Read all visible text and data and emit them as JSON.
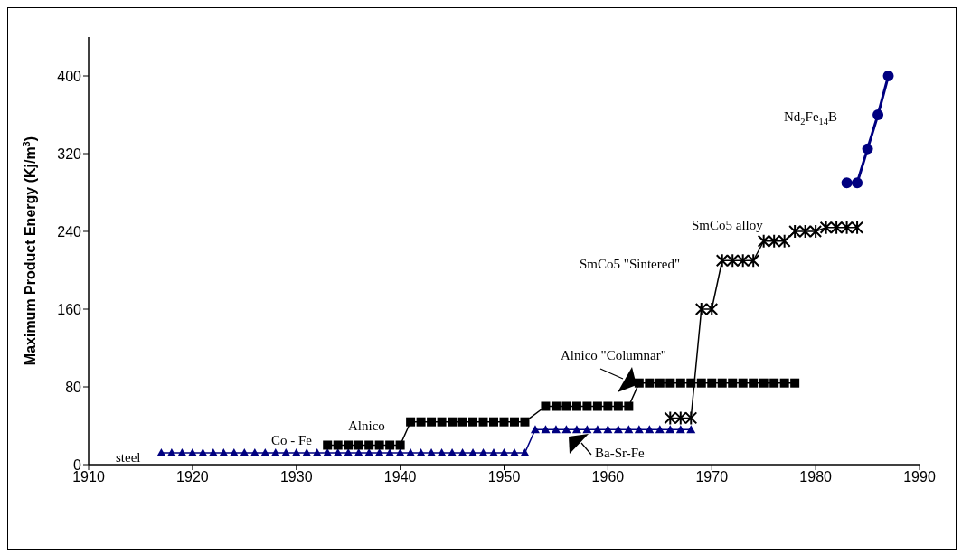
{
  "chart_data": {
    "type": "line",
    "ylabel": "Maximum Product Energy  (Kj/m$^{3}$)",
    "xlim": [
      1910,
      1990
    ],
    "xticks": [
      1910,
      1920,
      1930,
      1940,
      1950,
      1960,
      1970,
      1980,
      1990
    ],
    "ylim": [
      0,
      440
    ],
    "yticks": [
      0,
      80,
      160,
      240,
      320,
      400
    ],
    "line_style": "solid",
    "series": [
      {
        "color": "#000080",
        "marker": "triangle",
        "x": [
          1917,
          1918,
          1919,
          1920,
          1921,
          1922,
          1923,
          1924,
          1925,
          1926,
          1927,
          1928,
          1929,
          1930,
          1931,
          1932,
          1933,
          1934,
          1935,
          1936,
          1937,
          1938,
          1939,
          1940,
          1941,
          1942,
          1943,
          1944,
          1945,
          1946,
          1947,
          1948,
          1949,
          1950,
          1951,
          1952,
          1953,
          1954,
          1955,
          1956,
          1957,
          1958,
          1959,
          1960,
          1961,
          1962,
          1963,
          1964,
          1965,
          1966,
          1967,
          1968
        ],
        "values": [
          12,
          12,
          12,
          12,
          12,
          12,
          12,
          12,
          12,
          12,
          12,
          12,
          12,
          12,
          12,
          12,
          12,
          12,
          12,
          12,
          12,
          12,
          12,
          12,
          12,
          12,
          12,
          12,
          12,
          12,
          12,
          12,
          12,
          12,
          12,
          12,
          36,
          36,
          36,
          36,
          36,
          36,
          36,
          36,
          36,
          36,
          36,
          36,
          36,
          36,
          36,
          36
        ]
      },
      {
        "color": "#000000",
        "marker": "square",
        "x": [
          1933,
          1934,
          1935,
          1936,
          1937,
          1938,
          1939,
          1940,
          1941,
          1942,
          1943,
          1944,
          1945,
          1946,
          1947,
          1948,
          1949,
          1950,
          1951,
          1952,
          1954,
          1955,
          1956,
          1957,
          1958,
          1959,
          1960,
          1961,
          1962,
          1963,
          1964,
          1965,
          1966,
          1967,
          1968,
          1969,
          1970,
          1971,
          1972,
          1973,
          1974,
          1975,
          1976,
          1977,
          1978
        ],
        "values": [
          20,
          20,
          20,
          20,
          20,
          20,
          20,
          20,
          44,
          44,
          44,
          44,
          44,
          44,
          44,
          44,
          44,
          44,
          44,
          44,
          60,
          60,
          60,
          60,
          60,
          60,
          60,
          60,
          60,
          84,
          84,
          84,
          84,
          84,
          84,
          84,
          84,
          84,
          84,
          84,
          84,
          84,
          84,
          84,
          84
        ]
      },
      {
        "color": "#000000",
        "marker": "cross",
        "x": [
          1966,
          1967,
          1968,
          1969,
          1970,
          1971,
          1972,
          1973,
          1974,
          1975,
          1976,
          1977,
          1978,
          1979,
          1980,
          1981,
          1982,
          1983,
          1984
        ],
        "values": [
          48,
          48,
          48,
          160,
          160,
          210,
          210,
          210,
          210,
          230,
          230,
          230,
          240,
          240,
          240,
          244,
          244,
          244,
          244
        ]
      },
      {
        "color": "#000080",
        "marker": "circle",
        "x": [
          1983,
          1984,
          1985,
          1986,
          1987
        ],
        "values": [
          290,
          290,
          325,
          360,
          400
        ]
      }
    ],
    "annotations": [
      "steel",
      "Co - Fe",
      "Alnico",
      "Alnico \"Columnar\"",
      "Ba-Sr-Fe",
      "SmCo5 \"Sintered\"",
      "SmCo5 alloy",
      "Nd$_{2}$Fe$_{14}$B"
    ]
  }
}
